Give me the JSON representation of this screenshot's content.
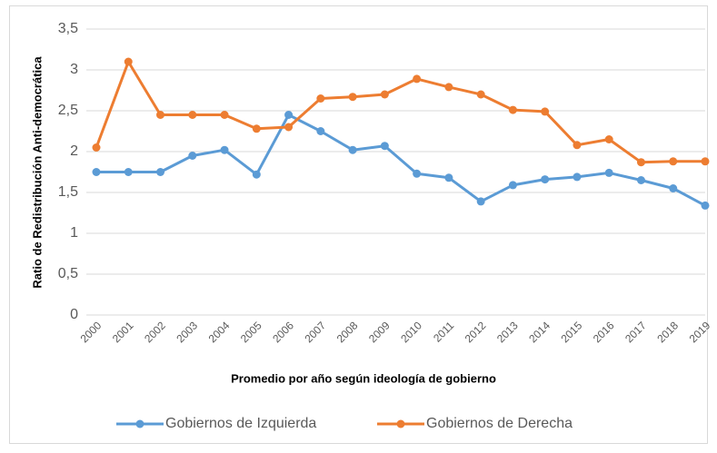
{
  "chart_data": {
    "type": "line",
    "y_label": "Ratio de Redistribución Anti-democrática",
    "x_label": "Promedio por año según ideología de gobierno",
    "categories": [
      "2000",
      "2001",
      "2002",
      "2003",
      "2004",
      "2005",
      "2006",
      "2007",
      "2008",
      "2009",
      "2010",
      "2011",
      "2012",
      "2013",
      "2014",
      "2015",
      "2016",
      "2017",
      "2018",
      "2019"
    ],
    "series": [
      {
        "name": "Gobiernos de Izquierda",
        "color": "#5b9bd5",
        "values": [
          1.75,
          1.75,
          1.75,
          1.95,
          2.02,
          1.72,
          2.45,
          2.25,
          2.02,
          2.07,
          1.73,
          1.68,
          1.39,
          1.59,
          1.66,
          1.69,
          1.74,
          1.65,
          1.55,
          1.34
        ]
      },
      {
        "name": "Gobiernos de Derecha",
        "color": "#ed7d31",
        "values": [
          2.05,
          3.1,
          2.45,
          2.45,
          2.45,
          2.28,
          2.3,
          2.65,
          2.67,
          2.7,
          2.89,
          2.79,
          2.7,
          2.51,
          2.49,
          2.08,
          2.15,
          1.87,
          1.88,
          1.88
        ]
      }
    ],
    "ylim": [
      0,
      3.5
    ],
    "yticks": [
      0,
      {
        "value": 0.5,
        "label": "0,5"
      },
      1,
      {
        "value": 1.5,
        "label": "1,5"
      },
      2,
      {
        "value": 2.5,
        "label": "2,5"
      },
      3,
      {
        "value": 3.5,
        "label": "3,5"
      }
    ],
    "grid": true,
    "legend": "bottom"
  }
}
